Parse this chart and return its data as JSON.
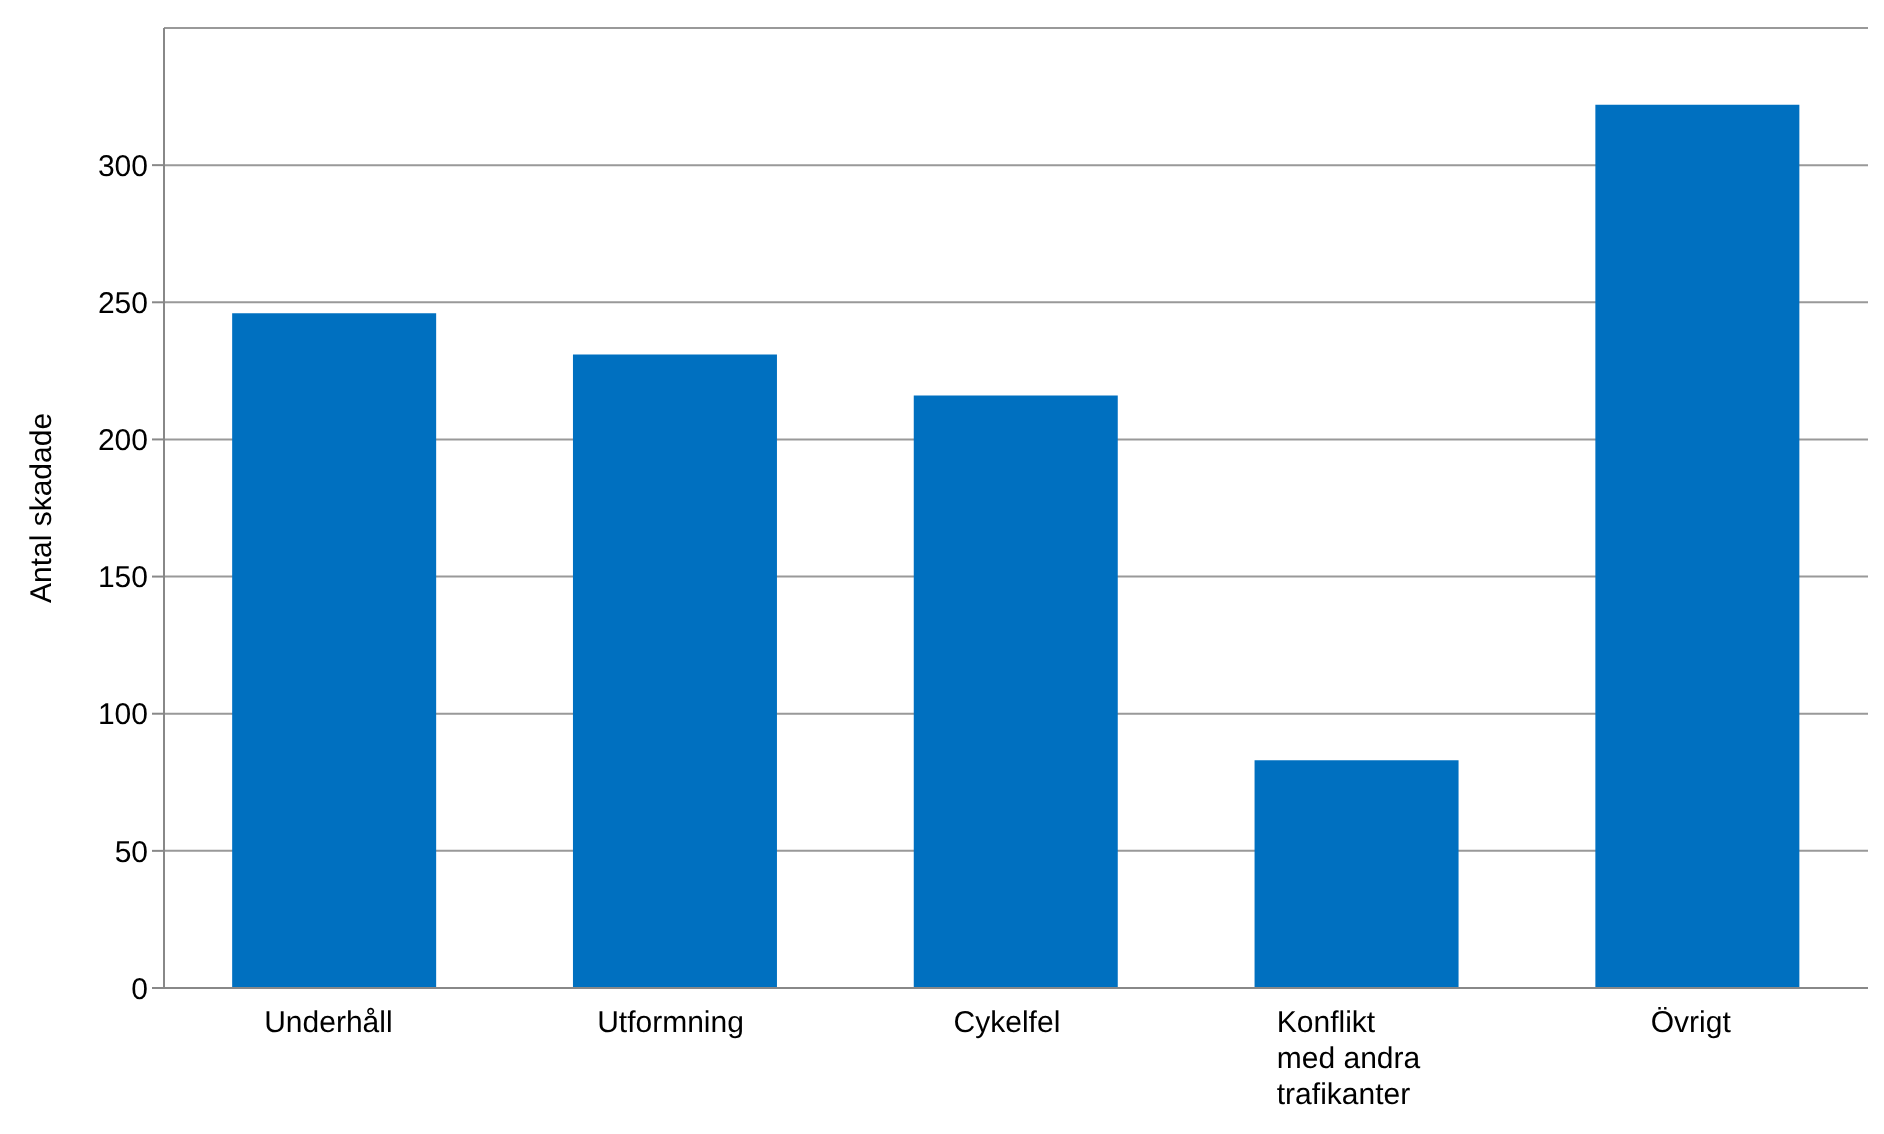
{
  "chart_data": {
    "type": "bar",
    "ylabel": "Antal skadade",
    "categories": [
      "Underhåll",
      "Utformning",
      "Cykelfel",
      "Konflikt med andra trafikanter",
      "Övrigt"
    ],
    "values": [
      246,
      231,
      216,
      83,
      322
    ],
    "color": "#0070c0",
    "ylim": [
      0,
      350
    ],
    "yticks": [
      0,
      50,
      100,
      150,
      200,
      250,
      300
    ],
    "grid": "y"
  }
}
